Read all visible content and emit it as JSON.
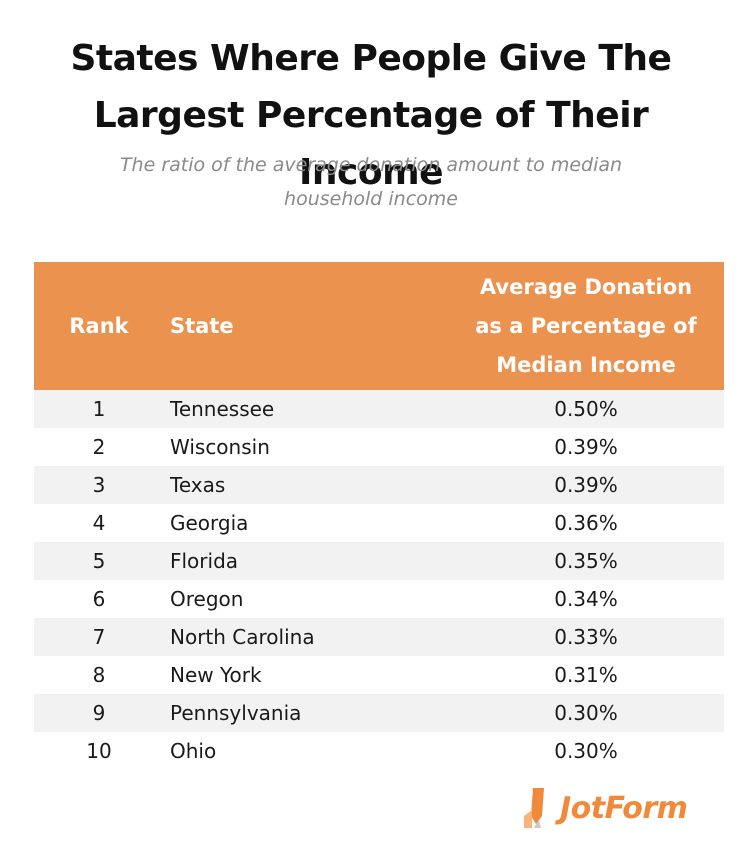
{
  "chart_data": {
    "type": "table",
    "title_lines": [
      "States Where People Give The",
      "Largest Percentage of Their Income"
    ],
    "subtitle_lines": [
      "The ratio of the average donation amount to median",
      "household income"
    ],
    "columns": {
      "rank": "Rank",
      "state": "State",
      "pct_lines": [
        "Average Donation",
        "as a Percentage of",
        "Median Income"
      ]
    },
    "rows": [
      {
        "rank": "1",
        "state": "Tennessee",
        "pct": "0.50%"
      },
      {
        "rank": "2",
        "state": "Wisconsin",
        "pct": "0.39%"
      },
      {
        "rank": "3",
        "state": "Texas",
        "pct": "0.39%"
      },
      {
        "rank": "4",
        "state": "Georgia",
        "pct": "0.36%"
      },
      {
        "rank": "5",
        "state": "Florida",
        "pct": "0.35%"
      },
      {
        "rank": "6",
        "state": "Oregon",
        "pct": "0.34%"
      },
      {
        "rank": "7",
        "state": "North Carolina",
        "pct": "0.33%"
      },
      {
        "rank": "8",
        "state": "New York",
        "pct": "0.31%"
      },
      {
        "rank": "9",
        "state": "Pennsylvania",
        "pct": "0.30%"
      },
      {
        "rank": "10",
        "state": "Ohio",
        "pct": "0.30%"
      }
    ],
    "colors": {
      "header_bg": "#ec924f",
      "header_text": "#ffffff",
      "row_alt": "#f2f2f2",
      "title": "#111111",
      "subtitle": "#8a8a8a"
    }
  },
  "brand": {
    "logo_text": "JotForm",
    "logo_icon": "jotform-pencil-icon",
    "color": "#f08a3a"
  }
}
